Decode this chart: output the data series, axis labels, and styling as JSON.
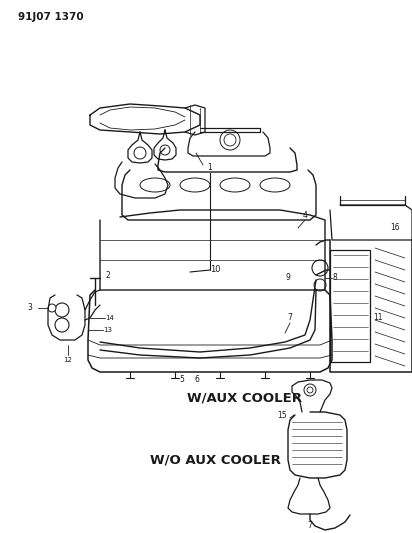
{
  "title_code": "91J07 1370",
  "bg_color": "#ffffff",
  "lc": "#1a1a1a",
  "fig_width": 4.12,
  "fig_height": 5.33,
  "dpi": 100,
  "label_aux_cooler": "W/AUX COOLER",
  "label_no_aux_cooler": "W/O AUX COOLER",
  "title_fontsize": 7.5,
  "label_fontsize": 9.5,
  "part_fontsize": 5.5
}
